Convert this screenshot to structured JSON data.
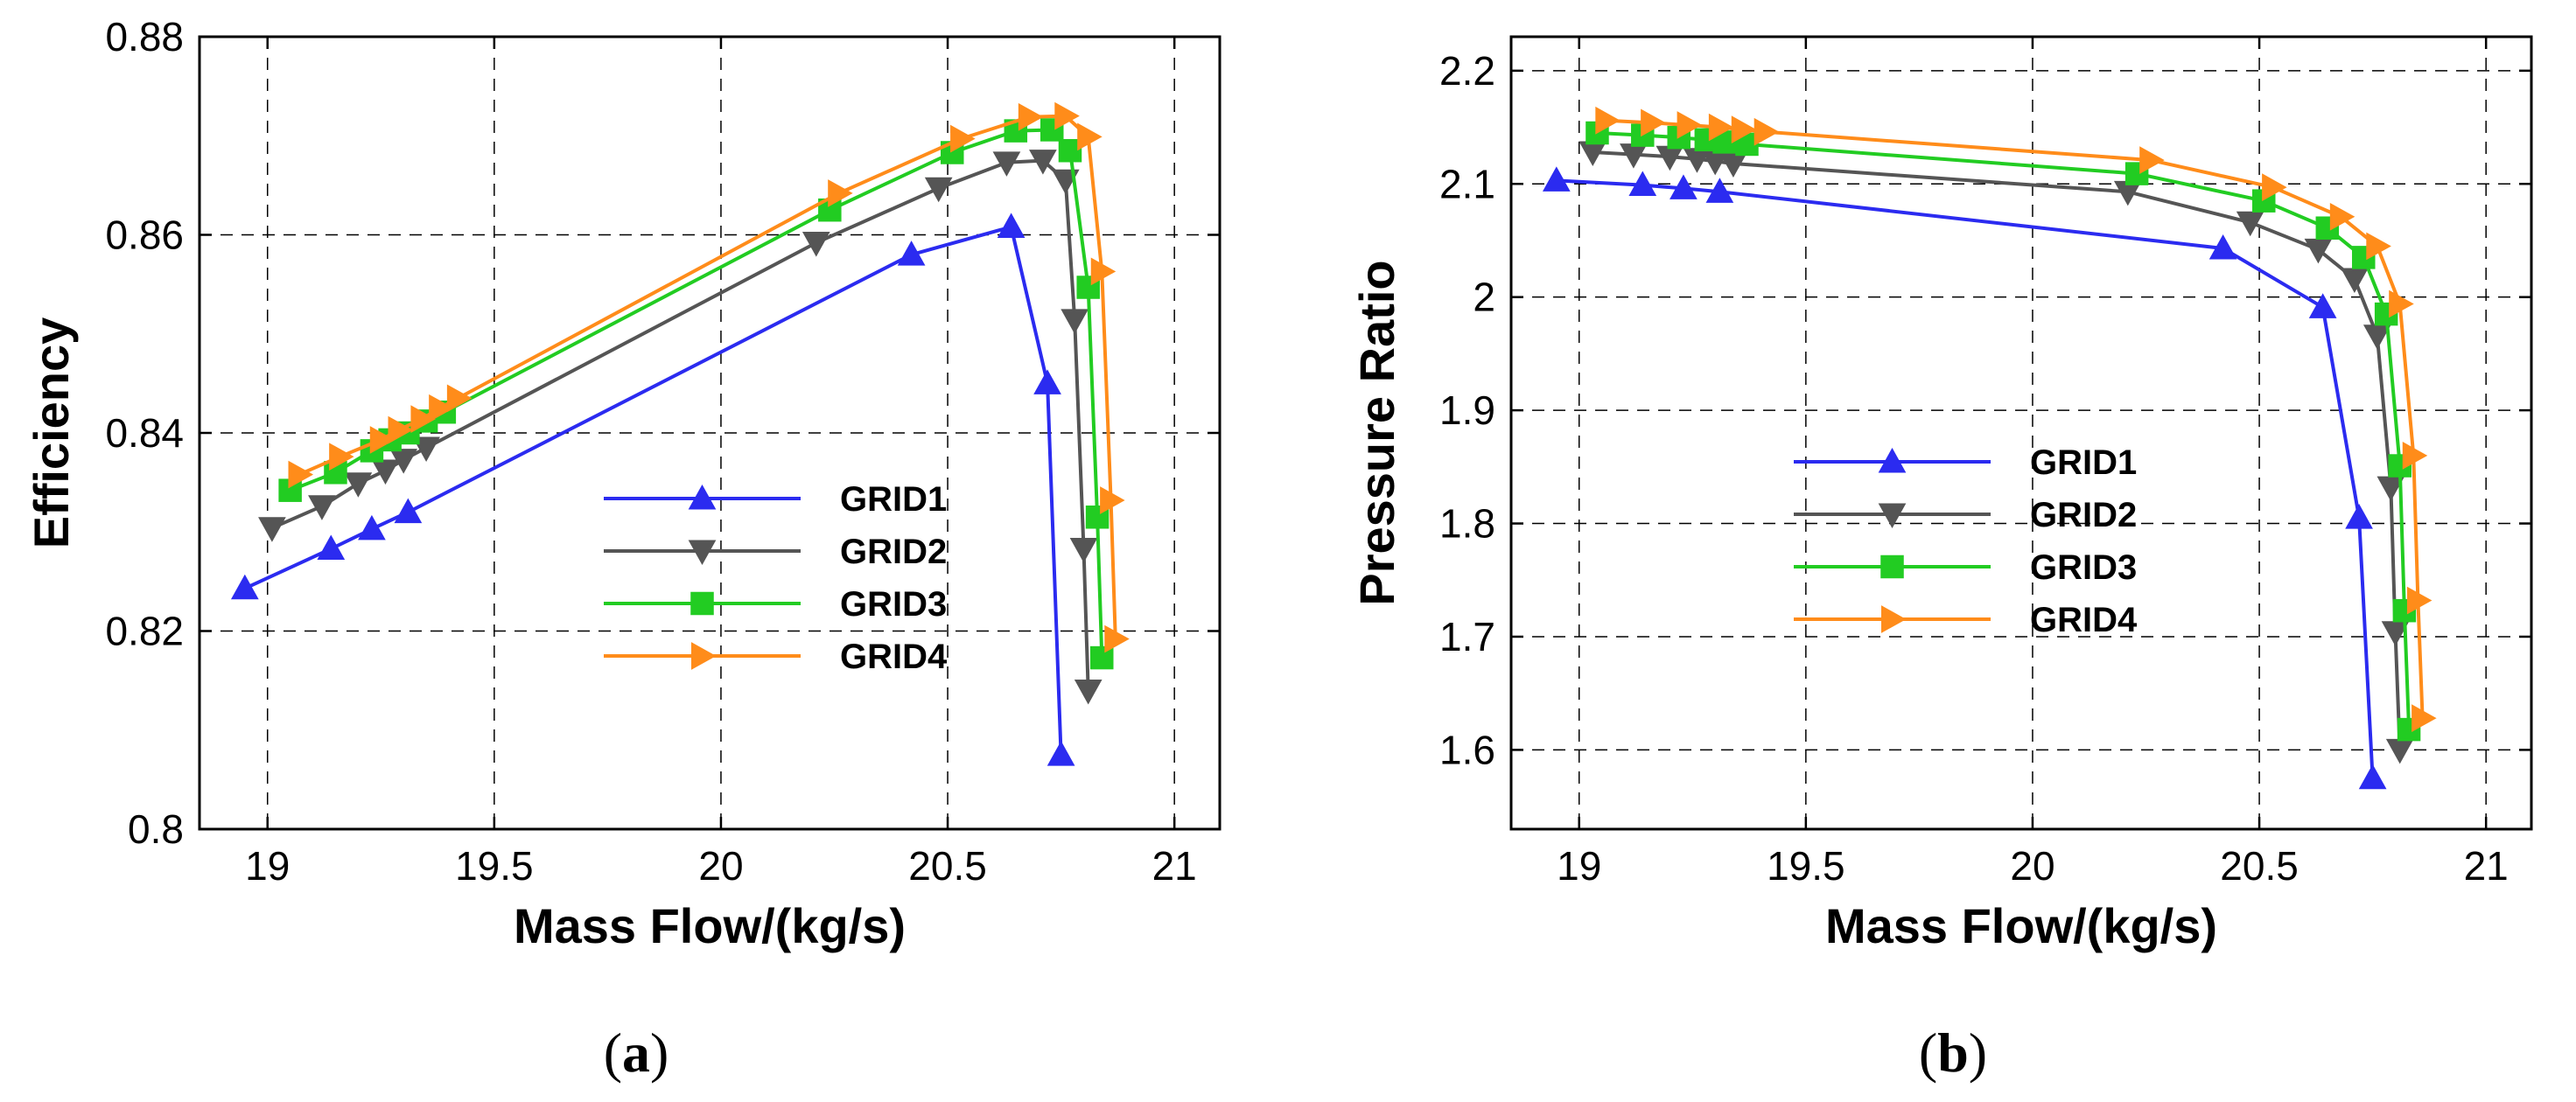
{
  "chart_data": [
    {
      "type": "line",
      "panel_label": "a",
      "xlabel": "Mass Flow/(kg/s)",
      "ylabel": "Efficiency",
      "xlim": [
        18.85,
        21.1
      ],
      "ylim": [
        0.8,
        0.88
      ],
      "xticks": [
        19,
        19.5,
        20,
        20.5,
        21
      ],
      "xtick_labels": [
        "19",
        "19.5",
        "20",
        "20.5",
        "21"
      ],
      "yticks": [
        0.8,
        0.82,
        0.84,
        0.86,
        0.88
      ],
      "ytick_labels": [
        "0.8",
        "0.82",
        "0.84",
        "0.86",
        "0.88"
      ],
      "grid": true,
      "legend_position": "center-right",
      "series": [
        {
          "name": "GRID1",
          "color": "#2b2bf0",
          "marker": "triangle-up",
          "x": [
            18.95,
            19.14,
            19.23,
            19.31,
            20.42,
            20.64,
            20.72,
            20.75
          ],
          "y": [
            0.8243,
            0.8283,
            0.8303,
            0.832,
            0.858,
            0.8608,
            0.845,
            0.8075
          ]
        },
        {
          "name": "GRID2",
          "color": "#555555",
          "marker": "triangle-down",
          "x": [
            19.01,
            19.12,
            19.2,
            19.26,
            19.3,
            19.35,
            20.21,
            20.48,
            20.63,
            20.71,
            20.76,
            20.78,
            20.8,
            20.81
          ],
          "y": [
            0.8304,
            0.8326,
            0.8349,
            0.8362,
            0.8373,
            0.8385,
            0.8592,
            0.8647,
            0.8673,
            0.8675,
            0.8655,
            0.8514,
            0.8283,
            0.814
          ]
        },
        {
          "name": "GRID3",
          "color": "#22cc22",
          "marker": "square",
          "x": [
            19.05,
            19.15,
            19.23,
            19.27,
            19.31,
            19.35,
            19.39,
            20.24,
            20.51,
            20.65,
            20.73,
            20.77,
            20.81,
            20.83,
            20.84
          ],
          "y": [
            0.8342,
            0.836,
            0.8382,
            0.8393,
            0.84,
            0.8412,
            0.8421,
            0.8625,
            0.8683,
            0.8705,
            0.8706,
            0.8685,
            0.8547,
            0.8315,
            0.8173
          ]
        },
        {
          "name": "GRID4",
          "color": "#ff8c1a",
          "marker": "triangle-right",
          "x": [
            19.07,
            19.16,
            19.25,
            19.29,
            19.34,
            19.38,
            19.42,
            20.26,
            20.53,
            20.68,
            20.76,
            20.81,
            20.84,
            20.86,
            20.87
          ],
          "y": [
            0.8358,
            0.8376,
            0.8393,
            0.8403,
            0.8414,
            0.8425,
            0.8435,
            0.8642,
            0.8697,
            0.8719,
            0.872,
            0.8699,
            0.8563,
            0.8332,
            0.8192
          ]
        }
      ]
    },
    {
      "type": "line",
      "panel_label": "b",
      "xlabel": "Mass Flow/(kg/s)",
      "ylabel": "Pressure Ratio",
      "xlim": [
        18.85,
        21.1
      ],
      "ylim": [
        1.53,
        2.23
      ],
      "xticks": [
        19,
        19.5,
        20,
        20.5,
        21
      ],
      "xtick_labels": [
        "19",
        "19.5",
        "20",
        "20.5",
        "21"
      ],
      "yticks": [
        1.6,
        1.7,
        1.8,
        1.9,
        2.0,
        2.1,
        2.2
      ],
      "ytick_labels": [
        "1.6",
        "1.7",
        "1.8",
        "1.9",
        "2",
        "2.1",
        "2.2"
      ],
      "grid": true,
      "legend_position": "center-left",
      "series": [
        {
          "name": "GRID1",
          "color": "#2b2bf0",
          "marker": "triangle-up",
          "x": [
            18.95,
            19.14,
            19.23,
            19.31,
            20.42,
            20.64,
            20.72,
            20.75
          ],
          "y": [
            2.103,
            2.099,
            2.096,
            2.093,
            2.043,
            1.991,
            1.805,
            1.575
          ]
        },
        {
          "name": "GRID2",
          "color": "#555555",
          "marker": "triangle-down",
          "x": [
            19.03,
            19.12,
            19.2,
            19.26,
            19.3,
            19.34,
            20.21,
            20.48,
            20.63,
            20.71,
            20.76,
            20.79,
            20.8,
            20.81
          ],
          "y": [
            2.128,
            2.126,
            2.124,
            2.122,
            2.12,
            2.118,
            2.093,
            2.066,
            2.042,
            2.016,
            1.966,
            1.832,
            1.704,
            1.6
          ]
        },
        {
          "name": "GRID3",
          "color": "#22cc22",
          "marker": "square",
          "x": [
            19.04,
            19.14,
            19.22,
            19.28,
            19.32,
            19.37,
            20.23,
            20.51,
            20.65,
            20.73,
            20.78,
            20.81,
            20.82,
            20.83
          ],
          "y": [
            2.145,
            2.143,
            2.141,
            2.139,
            2.137,
            2.135,
            2.109,
            2.085,
            2.061,
            2.035,
            1.985,
            1.851,
            1.723,
            1.618
          ]
        },
        {
          "name": "GRID4",
          "color": "#ff8c1a",
          "marker": "triangle-right",
          "x": [
            19.06,
            19.16,
            19.24,
            19.31,
            19.36,
            19.41,
            20.26,
            20.53,
            20.68,
            20.76,
            20.81,
            20.84,
            20.85,
            20.86
          ],
          "y": [
            2.156,
            2.154,
            2.152,
            2.15,
            2.148,
            2.146,
            2.121,
            2.097,
            2.071,
            2.045,
            1.994,
            1.86,
            1.732,
            1.628
          ]
        }
      ]
    }
  ]
}
